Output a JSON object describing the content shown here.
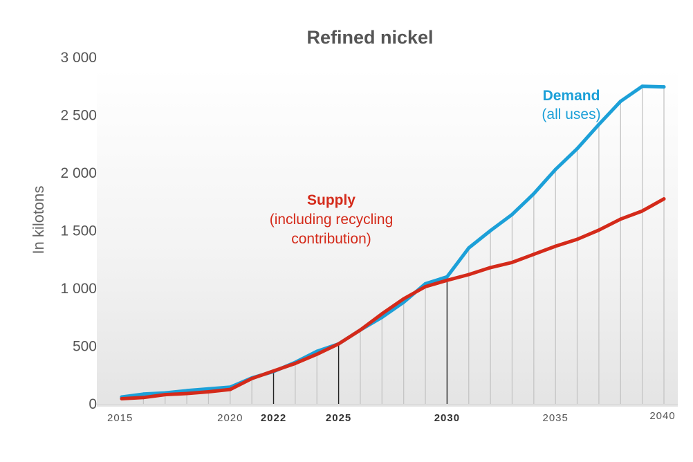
{
  "chart_data": {
    "type": "line",
    "title": "Refined nickel",
    "ylabel": "In kilotons",
    "xlabel": "",
    "xlim": [
      2015,
      2040
    ],
    "ylim": [
      0,
      3000
    ],
    "y_ticks": [
      0,
      500,
      1000,
      1500,
      2000,
      2500,
      3000
    ],
    "y_tick_labels": [
      "0",
      "500",
      "1 000",
      "1 500",
      "2 000",
      "2 500",
      "3 000"
    ],
    "x_ticks": [
      {
        "value": 2015,
        "label": "2015",
        "bold": false
      },
      {
        "value": 2020,
        "label": "2020",
        "bold": false
      },
      {
        "value": 2022,
        "label": "2022",
        "bold": true
      },
      {
        "value": 2025,
        "label": "2025",
        "bold": true
      },
      {
        "value": 2030,
        "label": "2030",
        "bold": true
      },
      {
        "value": 2035,
        "label": "2035",
        "bold": false
      },
      {
        "value": 2040,
        "label": "2040",
        "bold": false
      }
    ],
    "x": [
      2015,
      2016,
      2017,
      2018,
      2019,
      2020,
      2021,
      2022,
      2023,
      2024,
      2025,
      2026,
      2027,
      2028,
      2029,
      2030,
      2031,
      2032,
      2033,
      2034,
      2035,
      2036,
      2037,
      2038,
      2039,
      2040
    ],
    "series": [
      {
        "name": "Demand",
        "sublabel": "(all uses)",
        "color": "#1ca0d8",
        "values": [
          60,
          85,
          95,
          115,
          130,
          145,
          225,
          280,
          360,
          455,
          520,
          640,
          750,
          880,
          1040,
          1100,
          1350,
          1500,
          1640,
          1820,
          2030,
          2210,
          2420,
          2620,
          2750,
          2745
        ]
      },
      {
        "name": "Supply",
        "sublabel": "(including recycling contribution)",
        "sublabel_lines": [
          "(including recycling",
          "contribution)"
        ],
        "color": "#d42a1a",
        "values": [
          45,
          55,
          80,
          90,
          105,
          125,
          220,
          285,
          350,
          430,
          520,
          640,
          780,
          910,
          1015,
          1070,
          1120,
          1180,
          1225,
          1295,
          1365,
          1425,
          1505,
          1600,
          1670,
          1775
        ]
      }
    ],
    "grid": "vertical lines at each year",
    "legend": "inline annotations"
  }
}
